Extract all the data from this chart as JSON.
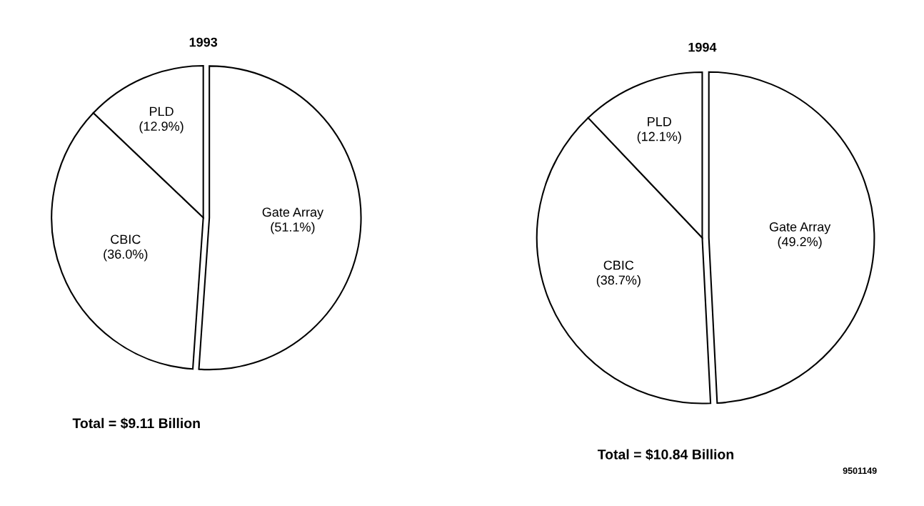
{
  "chart_data": [
    {
      "type": "pie",
      "title": "1993",
      "categories": [
        "Gate Array",
        "CBIC",
        "PLD"
      ],
      "values": [
        51.1,
        36.0,
        12.9
      ],
      "value_labels": [
        "(51.1%)",
        "(36.0%)",
        "(12.9%)"
      ],
      "colors": [
        "#ffffff",
        "#ffffff",
        "#ffffff"
      ],
      "annotations": [
        "Total = $9.11 Billion"
      ]
    },
    {
      "type": "pie",
      "title": "1994",
      "categories": [
        "Gate Array",
        "CBIC",
        "PLD"
      ],
      "values": [
        49.2,
        38.7,
        12.1
      ],
      "value_labels": [
        "(49.2%)",
        "(38.7%)",
        "(12.1%)"
      ],
      "colors": [
        "#ffffff",
        "#ffffff",
        "#ffffff"
      ],
      "annotations": [
        "Total = $10.84 Billion",
        "9501149"
      ]
    }
  ]
}
